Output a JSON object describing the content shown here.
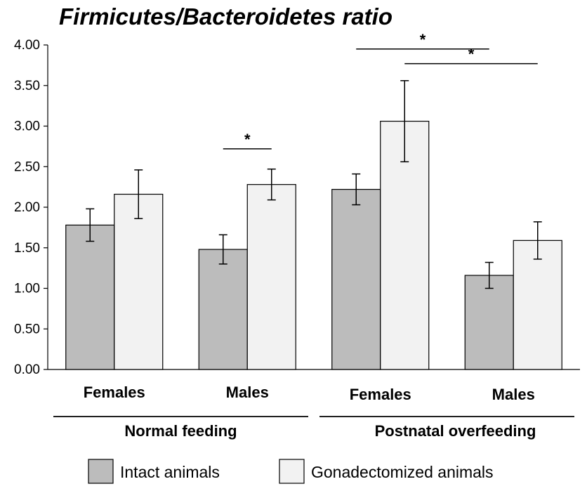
{
  "chart_data": {
    "type": "bar",
    "title": "Firmicutes/Bacteroidetes ratio",
    "xlabel": "",
    "ylabel": "",
    "ylim": [
      0,
      4
    ],
    "y_ticks": [
      "0.00",
      "0.50",
      "1.00",
      "1.50",
      "2.00",
      "2.50",
      "3.00",
      "3.50",
      "4.00"
    ],
    "categories": [
      "Females",
      "Males",
      "Females",
      "Males"
    ],
    "groups": [
      {
        "label": "Normal feeding",
        "categories": [
          0,
          1
        ]
      },
      {
        "label": "Postnatal overfeeding",
        "categories": [
          2,
          3
        ]
      }
    ],
    "series": [
      {
        "name": "Intact animals",
        "color": "#bcbcbc",
        "values": [
          1.78,
          1.48,
          2.22,
          1.16
        ],
        "errors": [
          0.2,
          0.18,
          0.19,
          0.16
        ]
      },
      {
        "name": "Gonadectomized animals",
        "color": "#f2f2f2",
        "values": [
          2.16,
          2.28,
          3.06,
          1.59
        ],
        "errors": [
          0.3,
          0.19,
          0.5,
          0.23
        ]
      }
    ],
    "significance": [
      {
        "label": "*",
        "from": {
          "category": 1,
          "series": 0
        },
        "to": {
          "category": 1,
          "series": 1
        },
        "level": 2.72
      },
      {
        "label": "*",
        "from": {
          "category": 2,
          "series": 0
        },
        "to": {
          "category": 3,
          "series": 0
        },
        "level": 3.95
      },
      {
        "label": "*",
        "from": {
          "category": 2,
          "series": 1
        },
        "to": {
          "category": 3,
          "series": 1
        },
        "level": 3.77
      }
    ],
    "legend": {
      "position": "bottom",
      "items": [
        "Intact animals",
        "Gonadectomized animals"
      ]
    }
  }
}
